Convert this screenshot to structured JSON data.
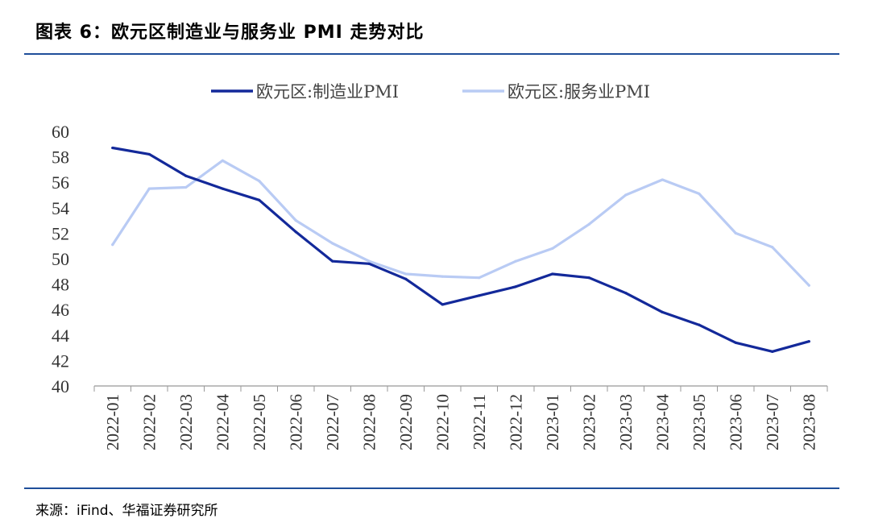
{
  "header": {
    "title": "图表 6：欧元区制造业与服务业 PMI 走势对比"
  },
  "footer": {
    "source": "来源：iFind、华福证券研究所"
  },
  "colors": {
    "rule": "#1f4e9a",
    "manufacturing": "#13299a",
    "services": "#b9cbf4"
  },
  "chart_data": {
    "type": "line",
    "title": "",
    "xlabel": "",
    "ylabel": "",
    "ylim": [
      40,
      60
    ],
    "yticks": [
      40,
      42,
      44,
      46,
      48,
      50,
      52,
      54,
      56,
      58,
      60
    ],
    "legend_position": "top",
    "grid": false,
    "categories": [
      "2022-01",
      "2022-02",
      "2022-03",
      "2022-04",
      "2022-05",
      "2022-06",
      "2022-07",
      "2022-08",
      "2022-09",
      "2022-10",
      "2022-11",
      "2022-12",
      "2023-01",
      "2023-02",
      "2023-03",
      "2023-04",
      "2023-05",
      "2023-06",
      "2023-07",
      "2023-08"
    ],
    "series": [
      {
        "name": "欧元区:制造业PMI",
        "color": "#13299a",
        "values": [
          58.7,
          58.2,
          56.5,
          55.5,
          54.6,
          52.1,
          49.8,
          49.6,
          48.4,
          46.4,
          47.1,
          47.8,
          48.8,
          48.5,
          47.3,
          45.8,
          44.8,
          43.4,
          42.7,
          43.5
        ]
      },
      {
        "name": "欧元区:服务业PMI",
        "color": "#b9cbf4",
        "values": [
          51.1,
          55.5,
          55.6,
          57.7,
          56.1,
          53.0,
          51.2,
          49.8,
          48.8,
          48.6,
          48.5,
          49.8,
          50.8,
          52.7,
          55.0,
          56.2,
          55.1,
          52.0,
          50.9,
          47.9
        ]
      }
    ]
  }
}
